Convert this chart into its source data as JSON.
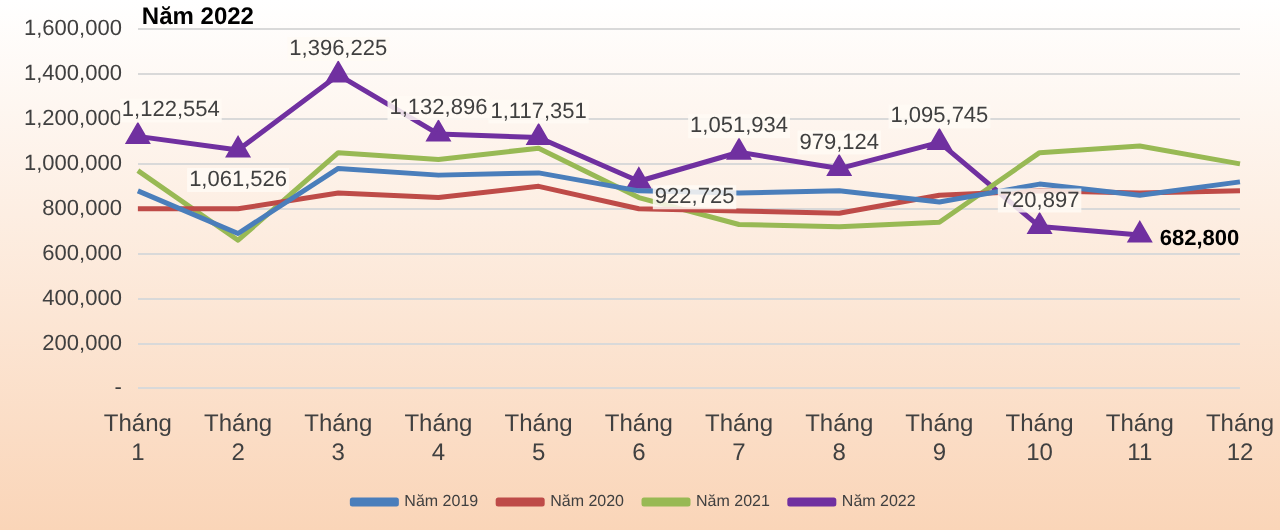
{
  "chart_data": {
    "type": "line",
    "title": "Năm 2022",
    "categories": [
      "Tháng 1",
      "Tháng 2",
      "Tháng 3",
      "Tháng 4",
      "Tháng 5",
      "Tháng 6",
      "Tháng 7",
      "Tháng 8",
      "Tháng 9",
      "Tháng 10",
      "Tháng 11",
      "Tháng 12"
    ],
    "series": [
      {
        "name": "Năm 2019",
        "color": "#4a7ebb",
        "marker": "none",
        "values": [
          880000,
          690000,
          980000,
          950000,
          960000,
          880000,
          870000,
          880000,
          830000,
          910000,
          860000,
          920000
        ]
      },
      {
        "name": "Năm 2020",
        "color": "#be4b48",
        "marker": "none",
        "values": [
          800000,
          800000,
          870000,
          850000,
          900000,
          800000,
          790000,
          780000,
          860000,
          880000,
          870000,
          880000
        ]
      },
      {
        "name": "Năm 2021",
        "color": "#98b954",
        "marker": "none",
        "values": [
          970000,
          660000,
          1050000,
          1020000,
          1070000,
          850000,
          730000,
          720000,
          740000,
          1050000,
          1080000,
          1000000
        ]
      },
      {
        "name": "Năm 2022",
        "color": "#7030a0",
        "marker": "triangle",
        "values": [
          1122554,
          1061526,
          1396225,
          1132896,
          1117351,
          922725,
          1051934,
          979124,
          1095745,
          720897,
          682800,
          null
        ],
        "value_labels": [
          "1,122,554",
          "1,061,526",
          "1,396,225",
          "1,132,896",
          "1,117,351",
          "922,725",
          "1,051,934",
          "979,124",
          "1,095,745",
          "720,897",
          "682,800",
          null
        ]
      }
    ],
    "ylim": [
      0,
      1600000
    ],
    "yticks": [
      {
        "value": 0,
        "label": "-"
      },
      {
        "value": 200000,
        "label": "200,000"
      },
      {
        "value": 400000,
        "label": "400,000"
      },
      {
        "value": 600000,
        "label": "600,000"
      },
      {
        "value": 800000,
        "label": "800,000"
      },
      {
        "value": 1000000,
        "label": "1,000,000"
      },
      {
        "value": 1200000,
        "label": "1,200,000"
      },
      {
        "value": 1400000,
        "label": "1,400,000"
      },
      {
        "value": 1600000,
        "label": "1,600,000"
      }
    ],
    "grid": "y",
    "legend": "bottom"
  }
}
